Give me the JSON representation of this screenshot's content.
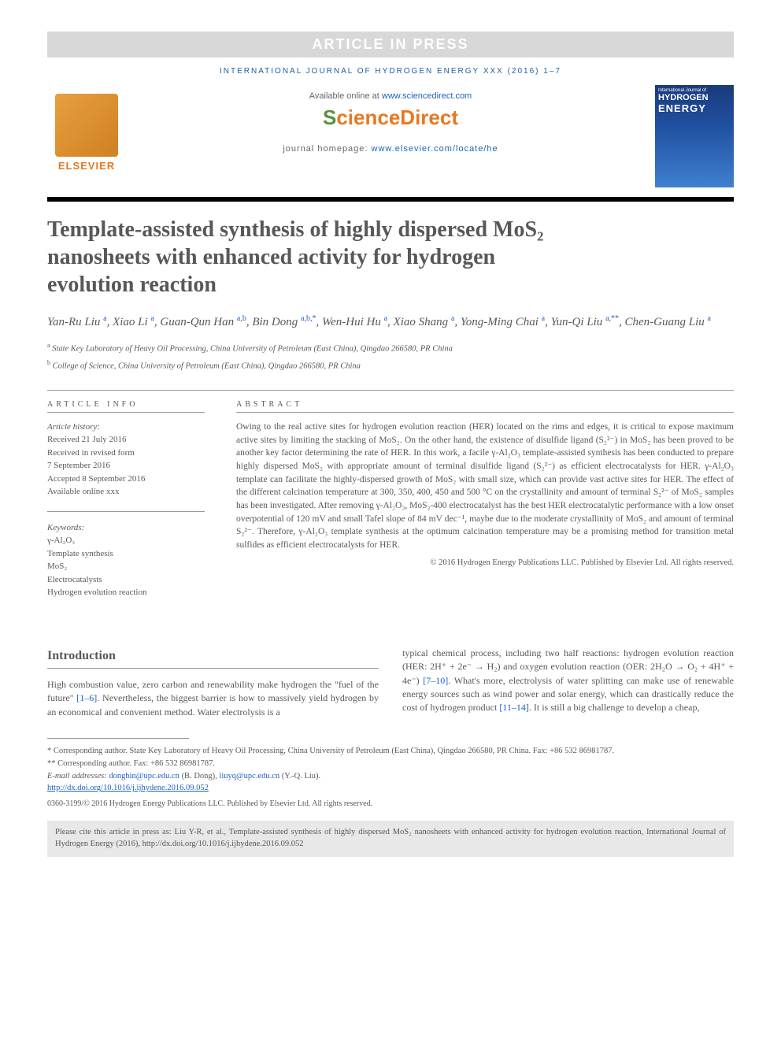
{
  "banner": "ARTICLE IN PRESS",
  "journal_header": "INTERNATIONAL JOURNAL OF HYDROGEN ENERGY XXX (2016) 1–7",
  "elsevier": "ELSEVIER",
  "available_prefix": "Available online at ",
  "available_link": "www.sciencedirect.com",
  "sd_logo_s": "S",
  "sd_logo_rest": "cienceDirect",
  "homepage_prefix": "journal homepage: ",
  "homepage_link": "www.elsevier.com/locate/he",
  "cover": {
    "line1": "International Journal of",
    "line2": "HYDROGEN",
    "line3": "ENERGY"
  },
  "title": "Template-assisted synthesis of highly dispersed MoS₂ nanosheets with enhanced activity for hydrogen evolution reaction",
  "authors_html": "Yan-Ru Liu <sup class='sup'>a</sup>, Xiao Li <sup class='sup'>a</sup>, Guan-Qun Han <sup class='sup'>a,b</sup>, Bin Dong <sup class='sup'>a,b,*</sup>, Wen-Hui Hu <sup class='sup'>a</sup>, Xiao Shang <sup class='sup'>a</sup>, Yong-Ming Chai <sup class='sup'>a</sup>, Yun-Qi Liu <sup class='sup'>a,**</sup>, Chen-Guang Liu <sup class='sup'>a</sup>",
  "affiliations": [
    {
      "sup": "a",
      "text": "State Key Laboratory of Heavy Oil Processing, China University of Petroleum (East China), Qingdao 266580, PR China"
    },
    {
      "sup": "b",
      "text": "College of Science, China University of Petroleum (East China), Qingdao 266580, PR China"
    }
  ],
  "info_label": "ARTICLE INFO",
  "abstract_label": "ABSTRACT",
  "history_title": "Article history:",
  "history": [
    "Received 21 July 2016",
    "Received in revised form",
    "7 September 2016",
    "Accepted 8 September 2016",
    "Available online xxx"
  ],
  "keywords_title": "Keywords:",
  "keywords": [
    "γ-Al₂O₃",
    "Template synthesis",
    "MoS₂",
    "Electrocatalysts",
    "Hydrogen evolution reaction"
  ],
  "abstract_text": "Owing to the real active sites for hydrogen evolution reaction (HER) located on the rims and edges, it is critical to expose maximum active sites by limiting the stacking of MoS₂. On the other hand, the existence of disulfide ligand (S₂²⁻) in MoS₂ has been proved to be another key factor determining the rate of HER. In this work, a facile γ-Al₂O₃ template-assisted synthesis has been conducted to prepare highly dispersed MoS₂ with appropriate amount of terminal disulfide ligand (S₂²⁻) as efficient electrocatalysts for HER. γ-Al₂O₃ template can facilitate the highly-dispersed growth of MoS₂ with small size, which can provide vast active sites for HER. The effect of the different calcination temperature at 300, 350, 400, 450 and 500 °C on the crystallinity and amount of terminal S₂²⁻ of MoS₂ samples has been investigated. After removing γ-Al₂O₃, MoS₂-400 electrocatalyst has the best HER electrocatalytic performance with a low onset overpotential of 120 mV and small Tafel slope of 84 mV dec⁻¹, maybe due to the moderate crystallinity of MoS₂ and amount of terminal S₂²⁻. Therefore, γ-Al₂O₃ template synthesis at the optimum calcination temperature may be a promising method for transition metal sulfides as efficient electrocatalysts for HER.",
  "abstract_copyright": "© 2016 Hydrogen Energy Publications LLC. Published by Elsevier Ltd. All rights reserved.",
  "intro_heading": "Introduction",
  "intro_col1": "High combustion value, zero carbon and renewability make hydrogen the \"fuel of the future\" [1–6]. Nevertheless, the biggest barrier is how to massively yield hydrogen by an economical and convenient method. Water electrolysis is a",
  "intro_col2": "typical chemical process, including two half reactions: hydrogen evolution reaction (HER: 2H⁺ + 2e⁻ → H₂) and oxygen evolution reaction (OER: 2H₂O → O₂ + 4H⁺ + 4e⁻) [7–10]. What's more, electrolysis of water splitting can make use of renewable energy sources such as wind power and solar energy, which can drastically reduce the cost of hydrogen product [11–14]. It is still a big challenge to develop a cheap,",
  "footnotes": {
    "corr1": "* Corresponding author. State Key Laboratory of Heavy Oil Processing, China University of Petroleum (East China), Qingdao 266580, PR China. Fax: +86 532 86981787.",
    "corr2": "** Corresponding author. Fax: +86 532 86981787.",
    "email_prefix": "E-mail addresses: ",
    "email1": "dongbin@upc.edu.cn",
    "email1_name": " (B. Dong), ",
    "email2": "liuyq@upc.edu.cn",
    "email2_name": " (Y.-Q. Liu).",
    "doi": "http://dx.doi.org/10.1016/j.ijhydene.2016.09.052",
    "issn": "0360-3199/© 2016 Hydrogen Energy Publications LLC. Published by Elsevier Ltd. All rights reserved."
  },
  "citation_box": "Please cite this article in press as: Liu Y-R, et al., Template-assisted synthesis of highly dispersed MoS₂ nanosheets with enhanced activity for hydrogen evolution reaction, International Journal of Hydrogen Energy (2016), http://dx.doi.org/10.1016/j.ijhydene.2016.09.052",
  "colors": {
    "banner_bg": "#d8d8d8",
    "link": "#2060c0",
    "orange": "#e87820",
    "text": "#58585a"
  }
}
